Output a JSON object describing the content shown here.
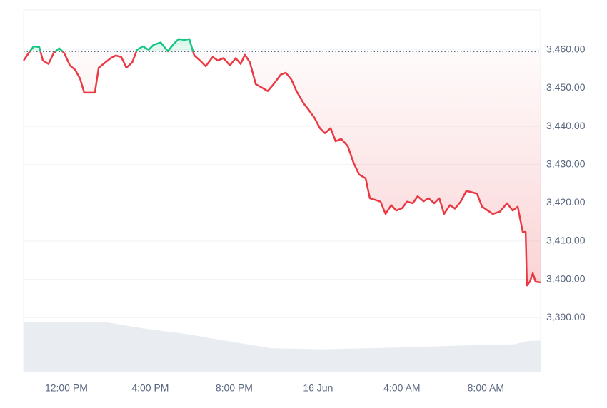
{
  "chart_data": {
    "type": "line",
    "x": [
      9.96,
      10.2,
      10.44,
      10.71,
      10.88,
      11.15,
      11.39,
      11.66,
      11.9,
      12.17,
      12.41,
      12.65,
      12.85,
      13.09,
      13.36,
      13.54,
      13.77,
      14.11,
      14.35,
      14.62,
      14.86,
      15.14,
      15.37,
      15.65,
      15.92,
      16.16,
      16.5,
      16.84,
      17.11,
      17.35,
      17.62,
      17.86,
      18.1,
      18.37,
      18.64,
      18.98,
      19.22,
      19.49,
      19.8,
      20.07,
      20.31,
      20.51,
      20.75,
      21.03,
      21.26,
      21.6,
      21.88,
      22.22,
      22.46,
      22.73,
      22.97,
      23.31,
      23.58,
      23.82,
      24.09,
      24.33,
      24.6,
      24.84,
      25.11,
      25.42,
      25.69,
      25.96,
      26.27,
      26.47,
      26.71,
      26.98,
      27.22,
      27.49,
      27.73,
      28.01,
      28.24,
      28.52,
      28.75,
      29.03,
      29.27,
      29.54,
      29.78,
      30.01,
      30.29,
      30.53,
      30.8,
      31.07,
      31.31,
      31.58,
      31.82,
      32.09,
      32.33,
      32.67,
      33.01,
      33.28,
      33.52,
      33.76,
      33.9,
      33.96,
      34.1,
      34.24,
      34.37,
      34.61
    ],
    "series": [
      {
        "color": "#ea3943",
        "up_color": "#16c784",
        "values": [
          3457.2,
          3459.1,
          3460.9,
          3460.7,
          3457.2,
          3456.3,
          3459.1,
          3460.4,
          3459.1,
          3455.9,
          3454.8,
          3452.5,
          3448.8,
          3448.8,
          3448.8,
          3455.3,
          3456.3,
          3457.8,
          3458.5,
          3458.1,
          3455.3,
          3456.7,
          3460.0,
          3460.9,
          3460.0,
          3461.3,
          3461.9,
          3459.6,
          3461.5,
          3462.8,
          3462.6,
          3462.8,
          3458.5,
          3457.2,
          3455.7,
          3458.1,
          3457.2,
          3457.8,
          3455.9,
          3457.8,
          3456.3,
          3458.7,
          3456.7,
          3451.0,
          3450.3,
          3449.2,
          3451.0,
          3453.5,
          3454.0,
          3452.2,
          3449.2,
          3446.0,
          3444.1,
          3442.3,
          3439.5,
          3438.2,
          3439.5,
          3436.1,
          3436.7,
          3434.8,
          3430.5,
          3427.4,
          3426.4,
          3421.2,
          3420.8,
          3420.3,
          3417.1,
          3419.4,
          3418.0,
          3418.6,
          3420.3,
          3419.9,
          3421.7,
          3420.4,
          3421.2,
          3419.9,
          3421.2,
          3417.1,
          3419.4,
          3418.5,
          3420.3,
          3423.1,
          3422.8,
          3422.4,
          3419.0,
          3418.0,
          3417.1,
          3417.7,
          3419.9,
          3418.0,
          3419.0,
          3412.4,
          3412.4,
          3398.4,
          3399.4,
          3401.6,
          3399.4,
          3399.2
        ]
      },
      {
        "axis": "y2",
        "color": "#e9ecf1",
        "x": [
          9.96,
          13.94,
          15.65,
          17.69,
          19.05,
          21.77,
          24.16,
          27.56,
          30.97,
          33.35,
          33.96,
          34.61
        ],
        "values": [
          91,
          91,
          80,
          70,
          61,
          44,
          42,
          45,
          49,
          51,
          57,
          58
        ]
      }
    ],
    "reference_line": 3459.5,
    "xlim": [
      9.96,
      34.61
    ],
    "xticks": [
      {
        "value": 12,
        "label": "12:00 PM"
      },
      {
        "value": 16,
        "label": "4:00 PM"
      },
      {
        "value": 20,
        "label": "8:00 PM"
      },
      {
        "value": 24,
        "label": "16 Jun"
      },
      {
        "value": 28,
        "label": "4:00 AM"
      },
      {
        "value": 32,
        "label": "8:00 AM"
      }
    ],
    "ylim": [
      3375.7,
      3470.4
    ],
    "yticks": [
      {
        "value": 3390,
        "label": "3,390.00"
      },
      {
        "value": 3400,
        "label": "3,400.00"
      },
      {
        "value": 3410,
        "label": "3,410.00"
      },
      {
        "value": 3420,
        "label": "3,420.00"
      },
      {
        "value": 3430,
        "label": "3,430.00"
      },
      {
        "value": 3440,
        "label": "3,440.00"
      },
      {
        "value": 3450,
        "label": "3,450.00"
      },
      {
        "value": 3460,
        "label": "3,460.00"
      }
    ],
    "y2lim": [
      0,
      100
    ],
    "grid": true
  }
}
